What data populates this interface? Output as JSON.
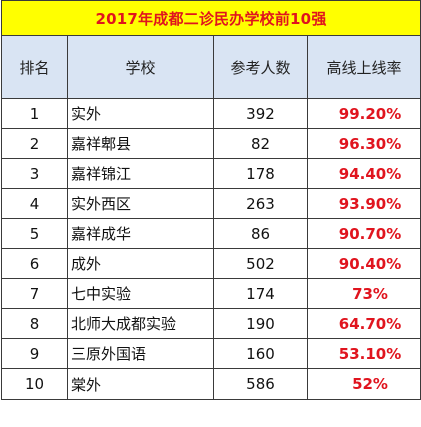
{
  "title": "2017年成都二诊民办学校前10强",
  "headers": {
    "rank": "排名",
    "school": "学校",
    "count": "参考人数",
    "rate": "高线上线率"
  },
  "rows": [
    {
      "rank": "1",
      "school": "实外",
      "count": "392",
      "rate": "99.20%"
    },
    {
      "rank": "2",
      "school": "嘉祥郫县",
      "count": "82",
      "rate": "96.30%"
    },
    {
      "rank": "3",
      "school": "嘉祥锦江",
      "count": "178",
      "rate": "94.40%"
    },
    {
      "rank": "4",
      "school": "实外西区",
      "count": "263",
      "rate": "93.90%"
    },
    {
      "rank": "5",
      "school": "嘉祥成华",
      "count": "86",
      "rate": "90.70%"
    },
    {
      "rank": "6",
      "school": "成外",
      "count": "502",
      "rate": "90.40%"
    },
    {
      "rank": "7",
      "school": "七中实验",
      "count": "174",
      "rate": "73%"
    },
    {
      "rank": "8",
      "school": "北师大成都实验",
      "count": "190",
      "rate": "64.70%"
    },
    {
      "rank": "9",
      "school": "三原外国语",
      "count": "160",
      "rate": "53.10%"
    },
    {
      "rank": "10",
      "school": "棠外",
      "count": "586",
      "rate": "52%"
    }
  ],
  "colors": {
    "title_bg": "#ffff00",
    "title_text": "#e0141e",
    "header_bg": "#d9e4f3",
    "rate_text": "#e0141e"
  }
}
